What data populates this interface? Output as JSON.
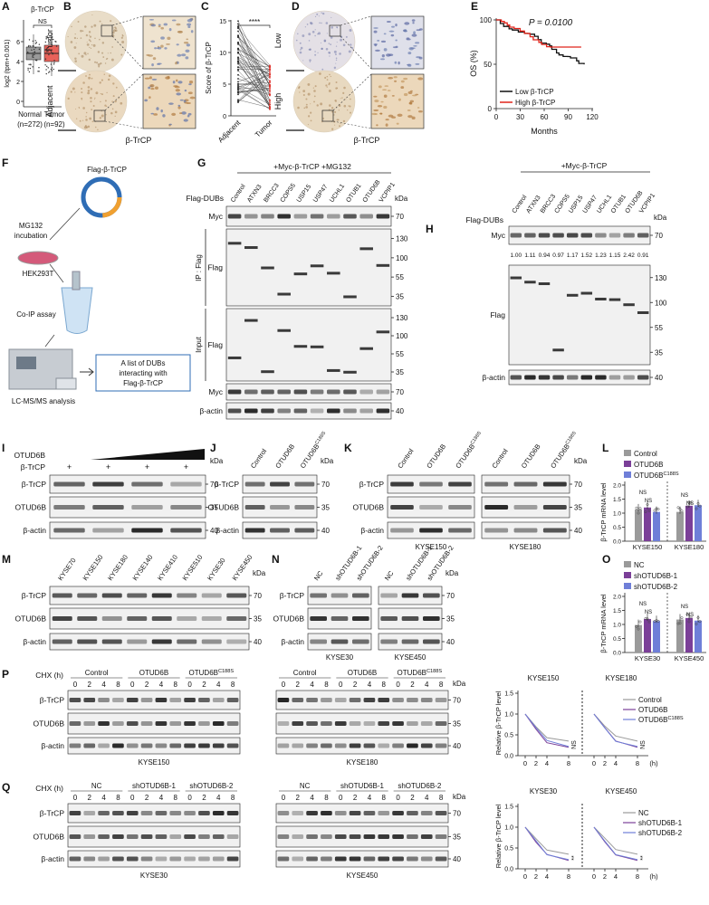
{
  "letters": [
    "A",
    "B",
    "C",
    "D",
    "E",
    "F",
    "G",
    "H",
    "I",
    "J",
    "K",
    "L",
    "M",
    "N",
    "O",
    "P",
    "Q"
  ],
  "A": {
    "title": "β-TrCP",
    "y_label": "log2 (tpm+0.001)",
    "yticks": [
      "0",
      "2",
      "4",
      "6"
    ],
    "sig": "NS",
    "groups": [
      "Normal",
      "Tumor"
    ],
    "counts": [
      "(n=272)",
      "(n=92)"
    ]
  },
  "B": {
    "rows": [
      "Tumor",
      "Adjacent"
    ],
    "caption": "β-TrCP"
  },
  "C": {
    "y_label": "Score of β-TrCP",
    "yticks": [
      "0",
      "5",
      "10",
      "15"
    ],
    "sig": "****",
    "groups": [
      "Adjacent",
      "Tumor"
    ]
  },
  "D": {
    "rows": [
      "Low",
      "High"
    ],
    "caption": "β-TrCP"
  },
  "E": {
    "p_value": "P = 0.0100",
    "y_label": "OS (%)",
    "yticks": [
      "0",
      "50",
      "100"
    ],
    "xticks": [
      "0",
      "30",
      "60",
      "90",
      "120"
    ],
    "x_label": "Months",
    "legend": [
      "Low β-TrCP",
      "High β-TrCP"
    ]
  },
  "F": {
    "plasmid": "Flag-β-TrCP",
    "steps": [
      "MG132",
      "incubation",
      "HEK293T",
      "Co-IP assay",
      "LC-MS/MS analysis"
    ],
    "result": [
      "A list of DUBs",
      "interacting with",
      "Flag-β-TrCP"
    ]
  },
  "G": {
    "treatment": "+Myc-β-TrCP +MG132",
    "row_title": "Flag-DUBs",
    "kda": "kDa",
    "lanes": [
      "Control",
      "ATXN3",
      "BRCC3",
      "COPS5",
      "USP15",
      "USP47",
      "UCHL1",
      "OTUB1",
      "OTUD6B",
      "VCPIP1"
    ],
    "groups": [
      "IP : Flag",
      "Input"
    ],
    "rows": [
      {
        "label": "Myc",
        "kda": [
          "70"
        ]
      },
      {
        "label": "Flag",
        "kda": [
          "130",
          "100",
          "55",
          "35"
        ]
      },
      {
        "label": "Flag",
        "kda": [
          "130",
          "100",
          "55",
          "35"
        ]
      },
      {
        "label": "Myc",
        "kda": [
          "70"
        ]
      },
      {
        "label": "β-actin",
        "kda": [
          "40"
        ]
      }
    ]
  },
  "H": {
    "treatment": "+Myc-β-TrCP",
    "row_title": "Flag-DUBs",
    "kda": "kDa",
    "lanes": [
      "Control",
      "ATXN3",
      "BRCC3",
      "COPS5",
      "USP15",
      "USP47",
      "UCHL1",
      "OTUB1",
      "OTUD6B",
      "VCPIP1"
    ],
    "quant": [
      "1.00",
      "1.11",
      "0.94",
      "0.97",
      "1.17",
      "1.52",
      "1.23",
      "1.15",
      "2.42",
      "0.91"
    ],
    "rows": [
      {
        "label": "Myc",
        "kda": [
          "70"
        ]
      },
      {
        "label": "Flag",
        "kda": [
          "130",
          "100",
          "55",
          "35"
        ]
      },
      {
        "label": "β-actin",
        "kda": [
          "40"
        ]
      }
    ]
  },
  "I": {
    "kda": "kDa",
    "gradient_label": "OTUD6B",
    "plus_label": "β-TrCP",
    "plus": [
      "+",
      "+",
      "+",
      "+"
    ],
    "rows": [
      {
        "label": "β-TrCP",
        "kda": [
          "70"
        ]
      },
      {
        "label": "OTUD6B",
        "kda": [
          "35"
        ]
      },
      {
        "label": "β-actin",
        "kda": [
          "40"
        ]
      }
    ]
  },
  "J": {
    "kda": "kDa",
    "lanes": [
      "Control",
      "OTUD6B",
      {
        "base": "OTUD6B",
        "sup": "C188S"
      }
    ],
    "rows": [
      {
        "label": "β-TrCP",
        "kda": [
          "70"
        ]
      },
      {
        "label": "OTUD6B",
        "kda": [
          "35"
        ]
      },
      {
        "label": "β-actin",
        "kda": [
          "40"
        ]
      }
    ]
  },
  "K": {
    "kda": "kDa",
    "lanes": [
      "Control",
      "OTUD6B",
      {
        "base": "OTUD6B",
        "sup": "C188S"
      }
    ],
    "rows": [
      {
        "label": "β-TrCP",
        "kda": [
          "70"
        ]
      },
      {
        "label": "OTUD6B",
        "kda": [
          "35"
        ]
      },
      {
        "label": "β-actin",
        "kda": [
          "40"
        ]
      }
    ],
    "cells": [
      "KYSE150",
      "KYSE180"
    ]
  },
  "L": {
    "legend": [
      "Control",
      "OTUD6B",
      {
        "base": "OTUD6B",
        "sup": "C188S"
      }
    ],
    "y_label": "β-TrCP mRNA level",
    "yticks": [
      "0.0",
      "0.5",
      "1.0",
      "1.5",
      "2.0"
    ],
    "sig": [
      "NS",
      "NS",
      "NS",
      "NS"
    ],
    "groups": [
      "KYSE150",
      "KYSE180"
    ]
  },
  "M": {
    "kda": "kDa",
    "lanes": [
      "KYSE70",
      "KYSE150",
      "KYSE180",
      "KYSE140",
      "KYSE410",
      "KYSE510",
      "KYSE30",
      "KYSE450"
    ],
    "rows": [
      {
        "label": "β-TrCP",
        "kda": [
          "70"
        ]
      },
      {
        "label": "OTUD6B",
        "kda": [
          "35"
        ]
      },
      {
        "label": "β-actin",
        "kda": [
          "40"
        ]
      }
    ]
  },
  "N": {
    "kda": "kDa",
    "lanes": [
      "NC",
      "shOTUD6B-1",
      "shOTUD6B-2"
    ],
    "rows": [
      {
        "label": "β-TrCP",
        "kda": [
          "70"
        ]
      },
      {
        "label": "OTUD6B",
        "kda": [
          "35"
        ]
      },
      {
        "label": "β-actin",
        "kda": [
          "40"
        ]
      }
    ],
    "cells": [
      "KYSE30",
      "KYSE450"
    ]
  },
  "O": {
    "legend": [
      "NC",
      "shOTUD6B-1",
      "shOTUD6B-2"
    ],
    "y_label": "β-TrCP mRNA level",
    "yticks": [
      "0.0",
      "0.5",
      "1.0",
      "1.5",
      "2.0"
    ],
    "sig": [
      "NS",
      "NS",
      "NS",
      "NS"
    ],
    "groups": [
      "KYSE30",
      "KYSE450"
    ]
  },
  "P": {
    "chx": "CHX (h)",
    "groups": [
      "Control",
      "OTUD6B",
      {
        "base": "OTUD6B",
        "sup": "C188S"
      }
    ],
    "times": [
      "0",
      "2",
      "4",
      "8"
    ],
    "kda": "kDa",
    "rows": [
      {
        "label": "β-TrCP",
        "kda": [
          "70"
        ]
      },
      {
        "label": "OTUD6B",
        "kda": [
          "35"
        ]
      },
      {
        "label": "β-actin",
        "kda": [
          "40"
        ]
      }
    ],
    "cells": [
      "KYSE150",
      "KYSE180"
    ],
    "chart": {
      "titles": [
        "KYSE150",
        "KYSE180"
      ],
      "y_label": "Relative β-TrCP level",
      "yticks": [
        "0.0",
        "0.5",
        "1.0",
        "1.5"
      ],
      "xticks": [
        "0",
        "2",
        "4",
        "8"
      ],
      "x_unit": "(h)",
      "legend": [
        "Control",
        "OTUD6B",
        {
          "base": "OTUD6B",
          "sup": "C188S"
        }
      ],
      "sig": [
        "NS",
        "NS"
      ]
    }
  },
  "Q": {
    "chx": "CHX (h)",
    "groups": [
      "NC",
      "shOTUD6B-1",
      "shOTUD6B-2"
    ],
    "times": [
      "0",
      "2",
      "4",
      "8"
    ],
    "kda": "kDa",
    "rows": [
      {
        "label": "β-TrCP",
        "kda": [
          "70"
        ]
      },
      {
        "label": "OTUD6B",
        "kda": [
          "35"
        ]
      },
      {
        "label": "β-actin",
        "kda": [
          "40"
        ]
      }
    ],
    "cells": [
      "KYSE30",
      "KYSE450"
    ],
    "chart": {
      "titles": [
        "KYSE30",
        "KYSE450"
      ],
      "y_label": "Relative β-TrCP level",
      "yticks": [
        "0.0",
        "0.5",
        "1.0",
        "1.5"
      ],
      "xticks": [
        "0",
        "2",
        "4",
        "8"
      ],
      "x_unit": "(h)",
      "legend": [
        "NC",
        "shOTUD6B-1",
        "shOTUD6B-2"
      ],
      "sig": [
        "**",
        "**"
      ]
    }
  }
}
